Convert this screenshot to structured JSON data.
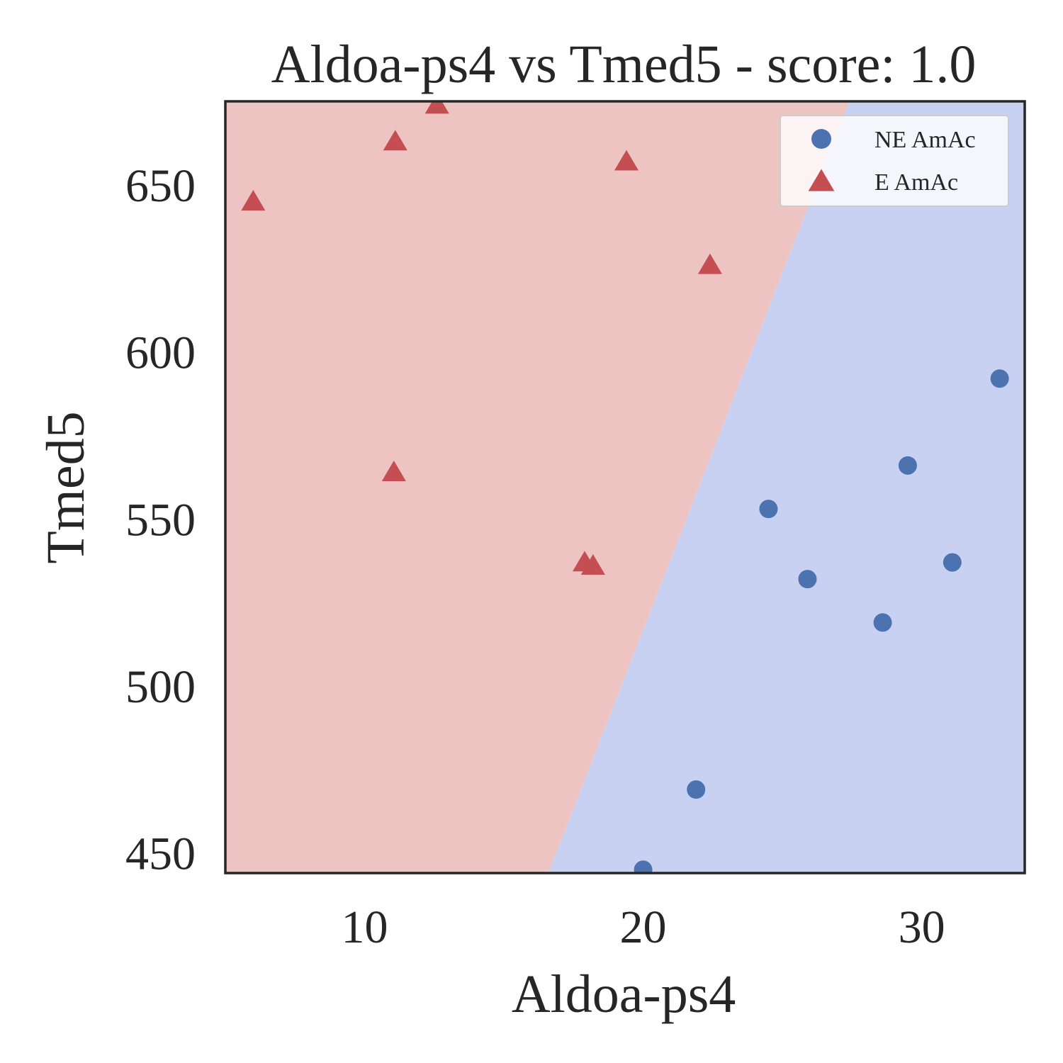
{
  "chart_data": {
    "type": "scatter",
    "title": "Aldoa-ps4 vs Tmed5 - score: 1.0",
    "xlabel": "Aldoa-ps4",
    "ylabel": "Tmed5",
    "xlim": [
      5,
      33.7
    ],
    "ylim": [
      444,
      675
    ],
    "xticks": [
      10,
      20,
      30
    ],
    "yticks": [
      450,
      500,
      550,
      600,
      650
    ],
    "grid": false,
    "legend_position": "top-right",
    "decision_boundary": {
      "points": [
        [
          16.6,
          444
        ],
        [
          27.4,
          675
        ]
      ],
      "left_region_color": "#eec4c3",
      "right_region_color": "#c8d1f1"
    },
    "series": [
      {
        "name": "NE AmAc",
        "marker": "circle",
        "color": "#4c72b0",
        "points": [
          [
            20.0,
            445
          ],
          [
            21.9,
            469
          ],
          [
            24.5,
            553
          ],
          [
            25.9,
            532
          ],
          [
            28.6,
            519
          ],
          [
            29.5,
            566
          ],
          [
            31.1,
            537
          ],
          [
            32.8,
            592
          ]
        ]
      },
      {
        "name": "E AmAc",
        "marker": "triangle",
        "color": "#c44e52",
        "points": [
          [
            6.0,
            645
          ],
          [
            11.1,
            663
          ],
          [
            12.6,
            674
          ],
          [
            11.05,
            564
          ],
          [
            19.4,
            657
          ],
          [
            22.4,
            626
          ],
          [
            17.9,
            537
          ],
          [
            18.2,
            536
          ]
        ]
      }
    ]
  }
}
